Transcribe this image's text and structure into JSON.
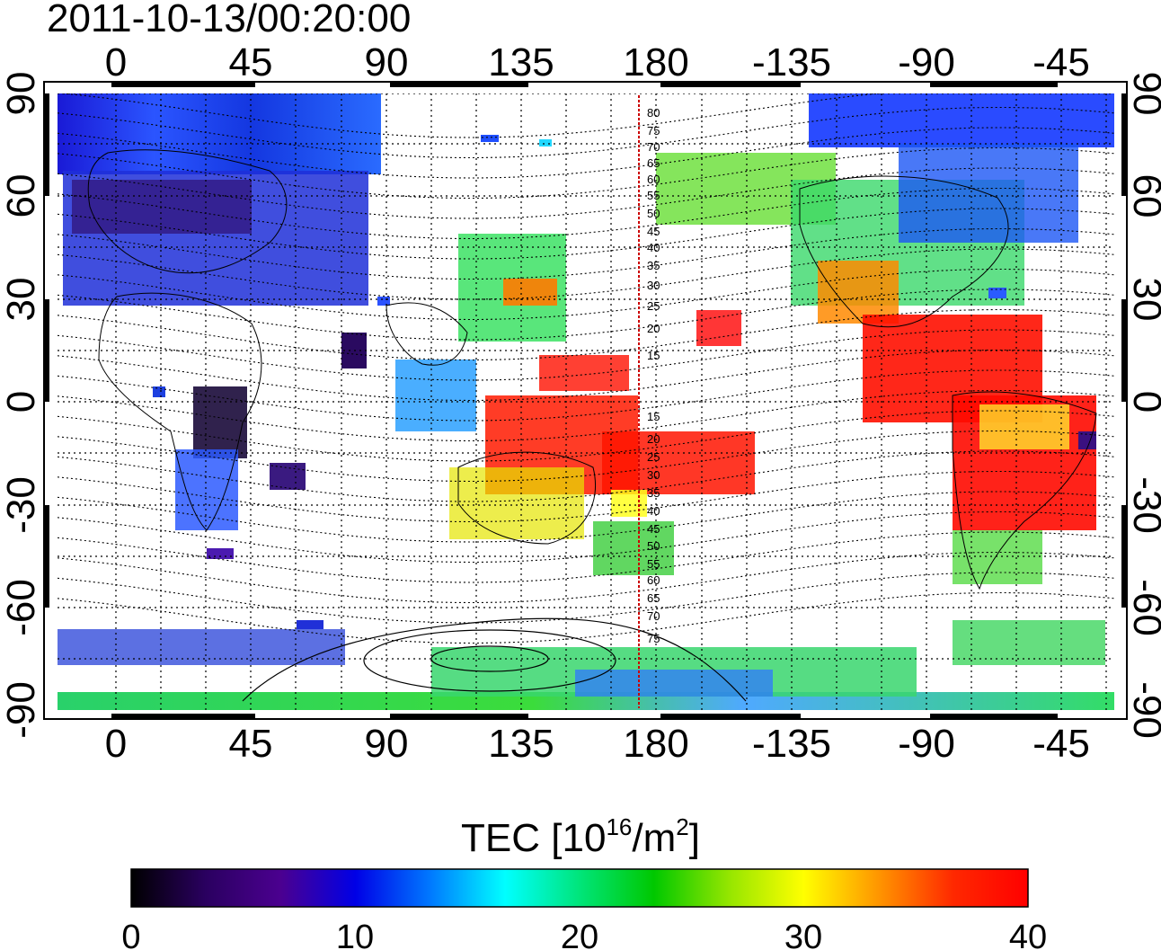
{
  "title": "2011-10-13/00:20:00",
  "map": {
    "x_ticks_top": [
      "0",
      "45",
      "90",
      "135",
      "180",
      "-135",
      "-90",
      "-45"
    ],
    "x_ticks_bottom": [
      "0",
      "45",
      "90",
      "135",
      "180",
      "-135",
      "-90",
      "-45"
    ],
    "y_ticks_left": [
      "90",
      "60",
      "30",
      "0",
      "-30",
      "-60",
      "-90"
    ],
    "y_ticks_right": [
      "90",
      "60",
      "30",
      "0",
      "-30",
      "-60",
      "-90"
    ],
    "magnetic_lat_labels": [
      "80",
      "75",
      "70",
      "65",
      "60",
      "55",
      "50",
      "45",
      "40",
      "35",
      "30",
      "25",
      "20",
      "15",
      "15",
      "20",
      "25",
      "30",
      "35",
      "40",
      "45",
      "50",
      "55",
      "60",
      "65",
      "70",
      "75"
    ],
    "colors": {
      "meridian_line": "#cc0000",
      "grid": "#000000"
    }
  },
  "colorbar": {
    "label_main": "TEC  [10",
    "label_exp1": "16",
    "label_mid": "/m",
    "label_exp2": "2",
    "label_end": "]",
    "min": 0,
    "max": 40,
    "ticks": [
      "0",
      "10",
      "20",
      "30",
      "40"
    ],
    "stops": [
      "#000000",
      "#2a0060",
      "#4b0090",
      "#0000e6",
      "#0078ff",
      "#00ffff",
      "#00e57a",
      "#00c800",
      "#96e600",
      "#ffff00",
      "#ff9600",
      "#ff2800",
      "#ff0000"
    ]
  }
}
